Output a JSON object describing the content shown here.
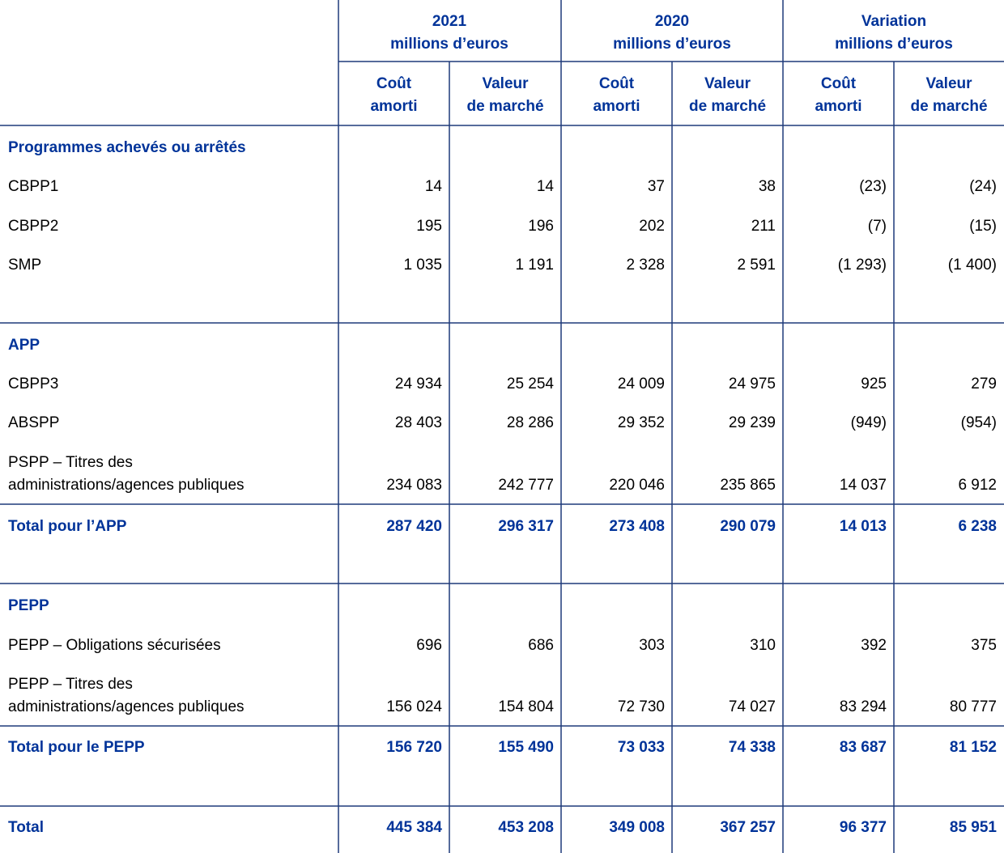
{
  "header": {
    "groups": [
      {
        "title": "2021",
        "unit": "millions d’euros"
      },
      {
        "title": "2020",
        "unit": "millions d’euros"
      },
      {
        "title": "Variation",
        "unit": "millions d’euros"
      }
    ],
    "columns": [
      [
        "Coût",
        "amorti"
      ],
      [
        "Valeur",
        "de marché"
      ],
      [
        "Coût",
        "amorti"
      ],
      [
        "Valeur",
        "de marché"
      ],
      [
        "Coût",
        "amorti"
      ],
      [
        "Valeur",
        "de marché"
      ]
    ]
  },
  "table": {
    "rows": [
      {
        "kind": "section",
        "label": [
          "Programmes achevés ou arrêtés"
        ]
      },
      {
        "kind": "data",
        "label": [
          "CBPP1"
        ],
        "values": [
          "14",
          "14",
          "37",
          "38",
          "(23)",
          "(24)"
        ]
      },
      {
        "kind": "data",
        "label": [
          "CBPP2"
        ],
        "values": [
          "195",
          "196",
          "202",
          "211",
          "(7)",
          "(15)"
        ]
      },
      {
        "kind": "data",
        "label": [
          "SMP"
        ],
        "values": [
          "1 035",
          "1 191",
          "2 328",
          "2 591",
          "(1 293)",
          "(1 400)"
        ]
      },
      {
        "kind": "section",
        "label": [
          "APP"
        ]
      },
      {
        "kind": "data",
        "label": [
          "CBPP3"
        ],
        "values": [
          "24 934",
          "25 254",
          "24 009",
          "24 975",
          "925",
          "279"
        ]
      },
      {
        "kind": "data",
        "label": [
          "ABSPP"
        ],
        "values": [
          "28 403",
          "28 286",
          "29 352",
          "29 239",
          "(949)",
          "(954)"
        ]
      },
      {
        "kind": "data",
        "label": [
          "PSPP – Titres des",
          "administrations/agences publiques"
        ],
        "values": [
          "234 083",
          "242 777",
          "220 046",
          "235 865",
          "14 037",
          "6 912"
        ]
      },
      {
        "kind": "total",
        "label": [
          "Total pour l’APP"
        ],
        "values": [
          "287 420",
          "296 317",
          "273 408",
          "290 079",
          "14 013",
          "6 238"
        ]
      },
      {
        "kind": "section",
        "label": [
          "PEPP"
        ]
      },
      {
        "kind": "data",
        "label": [
          "PEPP – Obligations sécurisées"
        ],
        "values": [
          "696",
          "686",
          "303",
          "310",
          "392",
          "375"
        ]
      },
      {
        "kind": "data",
        "label": [
          "PEPP – Titres des",
          "administrations/agences publiques"
        ],
        "values": [
          "156 024",
          "154 804",
          "72 730",
          "74 027",
          "83 294",
          "80 777"
        ]
      },
      {
        "kind": "total",
        "label": [
          "Total pour le PEPP"
        ],
        "values": [
          "156 720",
          "155 490",
          "73 033",
          "74 338",
          "83 687",
          "81 152"
        ]
      },
      {
        "kind": "total",
        "label": [
          "Total"
        ],
        "values": [
          "445 384",
          "453 208",
          "349 008",
          "367 257",
          "96 377",
          "85 951"
        ]
      }
    ]
  }
}
